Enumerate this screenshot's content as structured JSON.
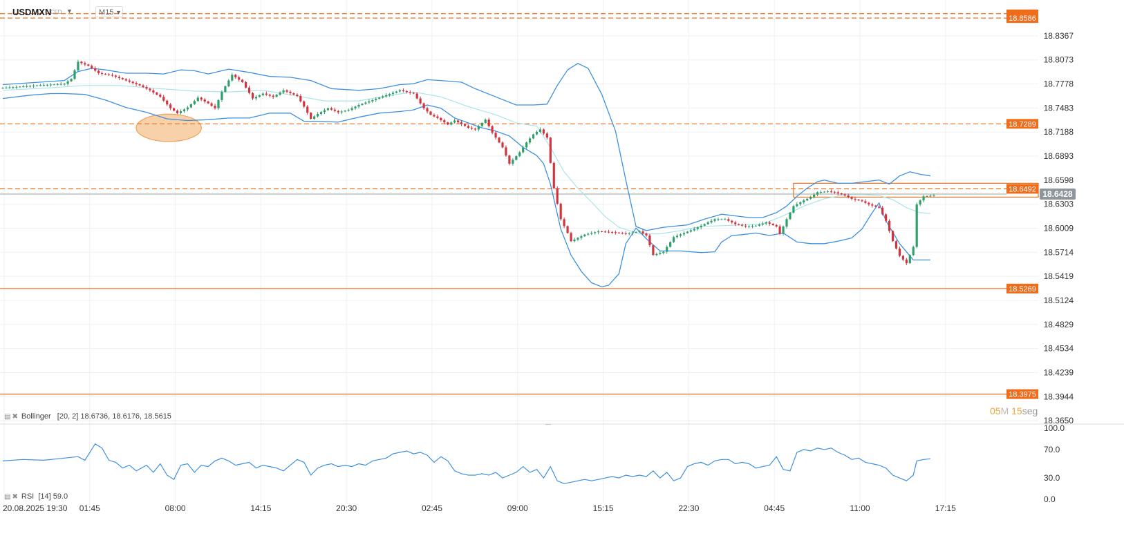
{
  "header": {
    "symbol": "USDMXN",
    "symbol_sub": "CFD",
    "timeframe": "M15"
  },
  "indicators": {
    "bollinger_label": "Bollinger",
    "bollinger_params": "[20, 2] 18.6736,  18.6176,  18.5615",
    "rsi_label": "RSI",
    "rsi_params": "[14] 59.0"
  },
  "timer": {
    "min": "05",
    "min_unit": "M",
    "sec": "15",
    "sec_unit": "seg"
  },
  "chart_data": {
    "type": "candlestick",
    "instrument": "USDMXN",
    "timeframe": "M15",
    "price_axis_ticks": [
      "18.8367",
      "18.8073",
      "18.7778",
      "18.7483",
      "18.7188",
      "18.6893",
      "18.6598",
      "18.6303",
      "18.6009",
      "18.5714",
      "18.5419",
      "18.5124",
      "18.4829",
      "18.4534",
      "18.4239",
      "18.3944",
      "18.3650"
    ],
    "ylim": [
      18.365,
      18.866
    ],
    "time_axis_ticks": [
      "20.08.2025 19:30",
      "01:45",
      "08:00",
      "14:15",
      "20:30",
      "02:45",
      "09:00",
      "15:15",
      "22:30",
      "04:45",
      "11:00",
      "17:15"
    ],
    "current_price": 18.6428,
    "horizontal_levels": [
      {
        "value": 18.8586,
        "style": "dashed",
        "color": "#ef6c1a"
      },
      {
        "value": 18.864,
        "style": "dashed",
        "color": "#ef6c1a"
      },
      {
        "value": 18.7289,
        "style": "dashed",
        "color": "#ef6c1a"
      },
      {
        "value": 18.6492,
        "style": "dashed",
        "color": "#ef6c1a"
      },
      {
        "value": 18.5269,
        "style": "solid",
        "color": "#ef6c1a"
      },
      {
        "value": 18.3975,
        "style": "solid",
        "color": "#ef6c1a"
      }
    ],
    "level_labels": [
      "18.8586",
      "18.7289",
      "18.6492",
      "18.5269",
      "18.3975"
    ],
    "current_price_label": "18.6428",
    "bollinger": {
      "period": 20,
      "stddev": 2,
      "upper": 18.6736,
      "middle": 18.6176,
      "lower": 18.5615
    },
    "rsi": {
      "period": 14,
      "value": 59.0,
      "ticks": [
        "100.0",
        "70.0",
        "30.0",
        "0.0"
      ],
      "ylim": [
        0,
        100
      ]
    },
    "colors": {
      "up": "#2e9e6b",
      "down": "#d2343f",
      "band": "#3d8fe0",
      "mid": "#a9e4ea",
      "level": "#ef6c1a",
      "price_line": "#9aa0a6",
      "rsi": "#3d8fe0"
    },
    "path": [
      [
        0,
        18.773
      ],
      [
        10,
        18.776
      ],
      [
        18,
        18.778
      ],
      [
        20,
        18.784
      ],
      [
        22,
        18.805
      ],
      [
        25,
        18.8
      ],
      [
        28,
        18.791
      ],
      [
        32,
        18.788
      ],
      [
        36,
        18.782
      ],
      [
        40,
        18.776
      ],
      [
        43,
        18.77
      ],
      [
        46,
        18.762
      ],
      [
        49,
        18.748
      ],
      [
        51,
        18.742
      ],
      [
        54,
        18.749
      ],
      [
        57,
        18.761
      ],
      [
        60,
        18.754
      ],
      [
        62,
        18.748
      ],
      [
        64,
        18.768
      ],
      [
        67,
        18.789
      ],
      [
        70,
        18.78
      ],
      [
        73,
        18.76
      ],
      [
        76,
        18.766
      ],
      [
        79,
        18.762
      ],
      [
        82,
        18.77
      ],
      [
        86,
        18.763
      ],
      [
        88,
        18.75
      ],
      [
        90,
        18.735
      ],
      [
        92,
        18.741
      ],
      [
        95,
        18.748
      ],
      [
        98,
        18.743
      ],
      [
        101,
        18.746
      ],
      [
        104,
        18.752
      ],
      [
        108,
        18.758
      ],
      [
        112,
        18.764
      ],
      [
        116,
        18.77
      ],
      [
        120,
        18.766
      ],
      [
        123,
        18.748
      ],
      [
        125,
        18.74
      ],
      [
        127,
        18.736
      ],
      [
        130,
        18.728
      ],
      [
        132,
        18.733
      ],
      [
        136,
        18.724
      ],
      [
        138,
        18.722
      ],
      [
        141,
        18.734
      ],
      [
        143,
        18.718
      ],
      [
        146,
        18.7
      ],
      [
        148,
        18.68
      ],
      [
        151,
        18.694
      ],
      [
        153,
        18.706
      ],
      [
        155,
        18.716
      ],
      [
        157,
        18.722
      ],
      [
        159,
        18.712
      ],
      [
        161,
        18.65
      ],
      [
        163,
        18.612
      ],
      [
        165,
        18.595
      ],
      [
        166,
        18.585
      ],
      [
        170,
        18.593
      ],
      [
        174,
        18.597
      ],
      [
        178,
        18.596
      ],
      [
        182,
        18.594
      ],
      [
        186,
        18.597
      ],
      [
        188,
        18.592
      ],
      [
        190,
        18.568
      ],
      [
        193,
        18.572
      ],
      [
        196,
        18.59
      ],
      [
        199,
        18.595
      ],
      [
        202,
        18.6
      ],
      [
        205,
        18.606
      ],
      [
        208,
        18.612
      ],
      [
        211,
        18.612
      ],
      [
        214,
        18.606
      ],
      [
        217,
        18.603
      ],
      [
        220,
        18.604
      ],
      [
        223,
        18.608
      ],
      [
        226,
        18.603
      ],
      [
        227,
        18.594
      ],
      [
        229,
        18.612
      ],
      [
        231,
        18.628
      ],
      [
        234,
        18.635
      ],
      [
        236,
        18.639
      ],
      [
        238,
        18.645
      ],
      [
        241,
        18.646
      ],
      [
        243,
        18.645
      ],
      [
        246,
        18.641
      ],
      [
        248,
        18.637
      ],
      [
        251,
        18.634
      ],
      [
        253,
        18.63
      ],
      [
        256,
        18.626
      ],
      [
        258,
        18.61
      ],
      [
        260,
        18.585
      ],
      [
        262,
        18.567
      ],
      [
        264,
        18.558
      ],
      [
        266,
        18.578
      ],
      [
        267,
        18.63
      ],
      [
        269,
        18.64
      ],
      [
        272,
        18.641
      ]
    ],
    "upper_band": [
      [
        0,
        18.777
      ],
      [
        18,
        18.782
      ],
      [
        22,
        18.793
      ],
      [
        26,
        18.797
      ],
      [
        30,
        18.795
      ],
      [
        36,
        18.791
      ],
      [
        42,
        18.791
      ],
      [
        47,
        18.79
      ],
      [
        52,
        18.795
      ],
      [
        56,
        18.794
      ],
      [
        60,
        18.79
      ],
      [
        66,
        18.796
      ],
      [
        72,
        18.792
      ],
      [
        78,
        18.787
      ],
      [
        84,
        18.786
      ],
      [
        90,
        18.782
      ],
      [
        96,
        18.772
      ],
      [
        104,
        18.77
      ],
      [
        110,
        18.772
      ],
      [
        116,
        18.777
      ],
      [
        120,
        18.778
      ],
      [
        124,
        18.783
      ],
      [
        128,
        18.782
      ],
      [
        134,
        18.78
      ],
      [
        138,
        18.772
      ],
      [
        144,
        18.762
      ],
      [
        150,
        18.752
      ],
      [
        155,
        18.752
      ],
      [
        159,
        18.753
      ],
      [
        162,
        18.776
      ],
      [
        165,
        18.795
      ],
      [
        168,
        18.803
      ],
      [
        171,
        18.797
      ],
      [
        175,
        18.765
      ],
      [
        179,
        18.72
      ],
      [
        182,
        18.66
      ],
      [
        185,
        18.603
      ],
      [
        188,
        18.598
      ],
      [
        193,
        18.602
      ],
      [
        200,
        18.605
      ],
      [
        205,
        18.612
      ],
      [
        210,
        18.618
      ],
      [
        214,
        18.616
      ],
      [
        218,
        18.614
      ],
      [
        222,
        18.614
      ],
      [
        226,
        18.62
      ],
      [
        229,
        18.628
      ],
      [
        232,
        18.64
      ],
      [
        235,
        18.65
      ],
      [
        238,
        18.658
      ],
      [
        240,
        18.66
      ],
      [
        244,
        18.656
      ],
      [
        248,
        18.656
      ],
      [
        252,
        18.658
      ],
      [
        256,
        18.66
      ],
      [
        259,
        18.655
      ],
      [
        262,
        18.665
      ],
      [
        265,
        18.67
      ],
      [
        268,
        18.667
      ],
      [
        271,
        18.665
      ]
    ],
    "middle_band": [
      [
        0,
        18.77
      ],
      [
        14,
        18.773
      ],
      [
        24,
        18.776
      ],
      [
        34,
        18.776
      ],
      [
        46,
        18.772
      ],
      [
        56,
        18.769
      ],
      [
        66,
        18.768
      ],
      [
        76,
        18.77
      ],
      [
        86,
        18.763
      ],
      [
        94,
        18.757
      ],
      [
        104,
        18.757
      ],
      [
        112,
        18.763
      ],
      [
        120,
        18.768
      ],
      [
        128,
        18.762
      ],
      [
        136,
        18.75
      ],
      [
        144,
        18.74
      ],
      [
        150,
        18.73
      ],
      [
        156,
        18.726
      ],
      [
        160,
        18.7
      ],
      [
        164,
        18.67
      ],
      [
        168,
        18.65
      ],
      [
        172,
        18.633
      ],
      [
        176,
        18.615
      ],
      [
        180,
        18.602
      ],
      [
        186,
        18.594
      ],
      [
        192,
        18.594
      ],
      [
        198,
        18.598
      ],
      [
        204,
        18.603
      ],
      [
        210,
        18.604
      ],
      [
        216,
        18.605
      ],
      [
        222,
        18.606
      ],
      [
        228,
        18.616
      ],
      [
        234,
        18.628
      ],
      [
        240,
        18.637
      ],
      [
        246,
        18.642
      ],
      [
        252,
        18.642
      ],
      [
        256,
        18.641
      ],
      [
        260,
        18.636
      ],
      [
        264,
        18.626
      ],
      [
        268,
        18.62
      ],
      [
        271,
        18.619
      ]
    ],
    "lower_band": [
      [
        0,
        18.76
      ],
      [
        8,
        18.764
      ],
      [
        14,
        18.766
      ],
      [
        18,
        18.766
      ],
      [
        24,
        18.765
      ],
      [
        30,
        18.758
      ],
      [
        36,
        18.749
      ],
      [
        42,
        18.743
      ],
      [
        48,
        18.735
      ],
      [
        54,
        18.733
      ],
      [
        60,
        18.734
      ],
      [
        66,
        18.736
      ],
      [
        72,
        18.736
      ],
      [
        78,
        18.742
      ],
      [
        84,
        18.742
      ],
      [
        88,
        18.732
      ],
      [
        92,
        18.732
      ],
      [
        98,
        18.731
      ],
      [
        104,
        18.737
      ],
      [
        110,
        18.742
      ],
      [
        116,
        18.744
      ],
      [
        120,
        18.746
      ],
      [
        124,
        18.752
      ],
      [
        128,
        18.748
      ],
      [
        132,
        18.736
      ],
      [
        136,
        18.73
      ],
      [
        140,
        18.724
      ],
      [
        144,
        18.72
      ],
      [
        148,
        18.714
      ],
      [
        152,
        18.7
      ],
      [
        156,
        18.69
      ],
      [
        158,
        18.68
      ],
      [
        160,
        18.655
      ],
      [
        163,
        18.6
      ],
      [
        166,
        18.568
      ],
      [
        169,
        18.548
      ],
      [
        172,
        18.534
      ],
      [
        175,
        18.529
      ],
      [
        177,
        18.531
      ],
      [
        180,
        18.545
      ],
      [
        182,
        18.582
      ],
      [
        185,
        18.601
      ],
      [
        188,
        18.588
      ],
      [
        192,
        18.573
      ],
      [
        198,
        18.573
      ],
      [
        204,
        18.571
      ],
      [
        208,
        18.572
      ],
      [
        210,
        18.584
      ],
      [
        213,
        18.592
      ],
      [
        216,
        18.593
      ],
      [
        220,
        18.595
      ],
      [
        224,
        18.592
      ],
      [
        228,
        18.595
      ],
      [
        232,
        18.584
      ],
      [
        236,
        18.582
      ],
      [
        240,
        18.582
      ],
      [
        244,
        18.585
      ],
      [
        248,
        18.589
      ],
      [
        251,
        18.6
      ],
      [
        254,
        18.62
      ],
      [
        256,
        18.632
      ],
      [
        258,
        18.61
      ],
      [
        262,
        18.582
      ],
      [
        266,
        18.562
      ],
      [
        270,
        18.562
      ],
      [
        271,
        18.562
      ]
    ],
    "rsi_path": [
      [
        0,
        54
      ],
      [
        6,
        56
      ],
      [
        12,
        55
      ],
      [
        18,
        58
      ],
      [
        22,
        60
      ],
      [
        24,
        55
      ],
      [
        27,
        78
      ],
      [
        29,
        72
      ],
      [
        31,
        55
      ],
      [
        33,
        52
      ],
      [
        35,
        44
      ],
      [
        37,
        48
      ],
      [
        39,
        40
      ],
      [
        42,
        48
      ],
      [
        44,
        38
      ],
      [
        46,
        50
      ],
      [
        48,
        34
      ],
      [
        50,
        28
      ],
      [
        52,
        48
      ],
      [
        54,
        50
      ],
      [
        56,
        38
      ],
      [
        58,
        48
      ],
      [
        60,
        46
      ],
      [
        62,
        54
      ],
      [
        64,
        58
      ],
      [
        66,
        54
      ],
      [
        68,
        48
      ],
      [
        70,
        50
      ],
      [
        72,
        52
      ],
      [
        74,
        44
      ],
      [
        76,
        48
      ],
      [
        78,
        46
      ],
      [
        80,
        44
      ],
      [
        82,
        40
      ],
      [
        84,
        48
      ],
      [
        86,
        56
      ],
      [
        88,
        52
      ],
      [
        90,
        34
      ],
      [
        92,
        44
      ],
      [
        94,
        48
      ],
      [
        96,
        50
      ],
      [
        98,
        46
      ],
      [
        100,
        48
      ],
      [
        102,
        46
      ],
      [
        104,
        50
      ],
      [
        106,
        48
      ],
      [
        108,
        54
      ],
      [
        110,
        56
      ],
      [
        112,
        58
      ],
      [
        114,
        64
      ],
      [
        116,
        66
      ],
      [
        118,
        68
      ],
      [
        120,
        64
      ],
      [
        122,
        66
      ],
      [
        124,
        62
      ],
      [
        126,
        52
      ],
      [
        128,
        60
      ],
      [
        130,
        54
      ],
      [
        132,
        40
      ],
      [
        134,
        36
      ],
      [
        136,
        34
      ],
      [
        138,
        34
      ],
      [
        140,
        36
      ],
      [
        142,
        34
      ],
      [
        144,
        38
      ],
      [
        146,
        30
      ],
      [
        148,
        34
      ],
      [
        150,
        38
      ],
      [
        152,
        46
      ],
      [
        154,
        38
      ],
      [
        156,
        42
      ],
      [
        158,
        30
      ],
      [
        160,
        46
      ],
      [
        162,
        26
      ],
      [
        164,
        22
      ],
      [
        166,
        24
      ],
      [
        168,
        26
      ],
      [
        170,
        28
      ],
      [
        172,
        26
      ],
      [
        174,
        28
      ],
      [
        176,
        30
      ],
      [
        178,
        32
      ],
      [
        180,
        30
      ],
      [
        182,
        34
      ],
      [
        184,
        32
      ],
      [
        186,
        34
      ],
      [
        188,
        32
      ],
      [
        190,
        40
      ],
      [
        192,
        30
      ],
      [
        194,
        38
      ],
      [
        196,
        26
      ],
      [
        198,
        30
      ],
      [
        200,
        46
      ],
      [
        202,
        50
      ],
      [
        204,
        52
      ],
      [
        206,
        48
      ],
      [
        208,
        54
      ],
      [
        210,
        56
      ],
      [
        212,
        56
      ],
      [
        214,
        50
      ],
      [
        216,
        52
      ],
      [
        218,
        50
      ],
      [
        220,
        44
      ],
      [
        222,
        46
      ],
      [
        224,
        48
      ],
      [
        226,
        60
      ],
      [
        228,
        42
      ],
      [
        230,
        40
      ],
      [
        232,
        66
      ],
      [
        234,
        70
      ],
      [
        236,
        68
      ],
      [
        238,
        72
      ],
      [
        240,
        70
      ],
      [
        242,
        72
      ],
      [
        244,
        66
      ],
      [
        246,
        62
      ],
      [
        248,
        56
      ],
      [
        250,
        58
      ],
      [
        252,
        52
      ],
      [
        254,
        50
      ],
      [
        256,
        48
      ],
      [
        258,
        44
      ],
      [
        260,
        34
      ],
      [
        262,
        30
      ],
      [
        264,
        26
      ],
      [
        266,
        34
      ],
      [
        267,
        54
      ],
      [
        269,
        56
      ],
      [
        271,
        57
      ]
    ],
    "highlight_ellipse": {
      "x_from": 41,
      "x_to": 56,
      "y_from": 18.714,
      "y_to": 18.734
    },
    "resistance_box": {
      "x_from": 231,
      "x_to": 272,
      "y_from": 18.639,
      "y_to": 18.656
    }
  }
}
